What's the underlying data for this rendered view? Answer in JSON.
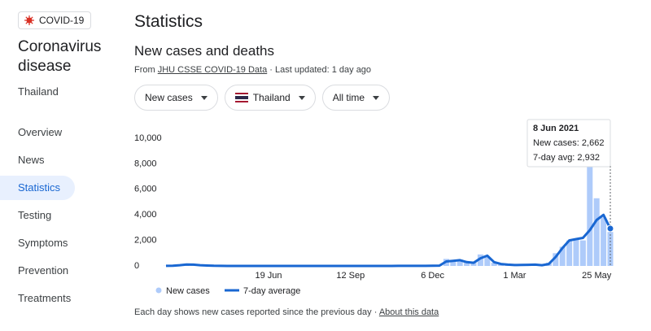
{
  "badge": "COVID-19",
  "topic": {
    "title": "Coronavirus disease",
    "location": "Thailand"
  },
  "nav": [
    "Overview",
    "News",
    "Statistics",
    "Testing",
    "Symptoms",
    "Prevention",
    "Treatments"
  ],
  "header": {
    "title": "Statistics",
    "subtitle": "New cases and deaths",
    "source_prefix": "From",
    "source_link": "JHU CSSE COVID-19 Data",
    "updated": "· Last updated: 1 day ago"
  },
  "filters": [
    "New cases",
    "Thailand",
    "All time"
  ],
  "chart_data": {
    "type": "combo",
    "categories": [
      null,
      null,
      null,
      null,
      null,
      null,
      null,
      null,
      null,
      null,
      null,
      null,
      null,
      null,
      null,
      "19 Jun",
      null,
      null,
      null,
      null,
      null,
      null,
      null,
      null,
      null,
      null,
      null,
      "12 Sep",
      null,
      null,
      null,
      null,
      null,
      null,
      null,
      null,
      null,
      null,
      null,
      "6 Dec",
      null,
      null,
      null,
      null,
      null,
      null,
      null,
      null,
      null,
      null,
      null,
      "1 Mar",
      null,
      null,
      null,
      null,
      null,
      null,
      null,
      null,
      null,
      null,
      null,
      "25 May",
      null,
      null
    ],
    "series": [
      {
        "name": "New cases",
        "color": "#aecbfa",
        "values": [
          10,
          30,
          90,
          110,
          100,
          50,
          30,
          15,
          5,
          3,
          3,
          2,
          2,
          3,
          2,
          2,
          3,
          2,
          3,
          2,
          3,
          2,
          3,
          3,
          2,
          3,
          2,
          3,
          3,
          2,
          3,
          3,
          4,
          3,
          5,
          4,
          6,
          8,
          10,
          20,
          30,
          550,
          350,
          500,
          250,
          300,
          900,
          700,
          250,
          150,
          100,
          60,
          90,
          100,
          80,
          50,
          250,
          1000,
          1500,
          2000,
          2100,
          2000,
          7800,
          5300,
          3800,
          2662
        ]
      },
      {
        "name": "7-day average",
        "color": "#1967d2",
        "values": [
          5,
          20,
          60,
          110,
          100,
          60,
          30,
          15,
          7,
          3,
          3,
          2,
          2,
          2,
          2,
          2,
          2,
          2,
          2,
          2,
          2,
          2,
          2,
          3,
          2,
          2,
          2,
          3,
          3,
          2,
          3,
          3,
          3,
          3,
          4,
          4,
          5,
          7,
          8,
          15,
          25,
          350,
          400,
          450,
          300,
          250,
          600,
          800,
          300,
          150,
          100,
          70,
          80,
          90,
          100,
          60,
          150,
          700,
          1400,
          2000,
          2100,
          2200,
          2800,
          3600,
          4000,
          2932
        ]
      }
    ],
    "ylim": [
      0,
      10000
    ],
    "yticks": [
      0,
      {
        "value": 2000,
        "label": "2,000"
      },
      {
        "value": 4000,
        "label": "4,000"
      },
      {
        "value": 6000,
        "label": "6,000"
      },
      {
        "value": 8000,
        "label": "8,000"
      },
      {
        "value": 10000,
        "label": "10,000"
      }
    ],
    "grid": false,
    "tooltip": {
      "title": "8 Jun 2021",
      "lines": [
        "New cases: 2,662",
        "7-day avg: 2,932"
      ]
    }
  },
  "footer": {
    "note": "Each day shows new cases reported since the previous day ·",
    "link": "About this data"
  }
}
